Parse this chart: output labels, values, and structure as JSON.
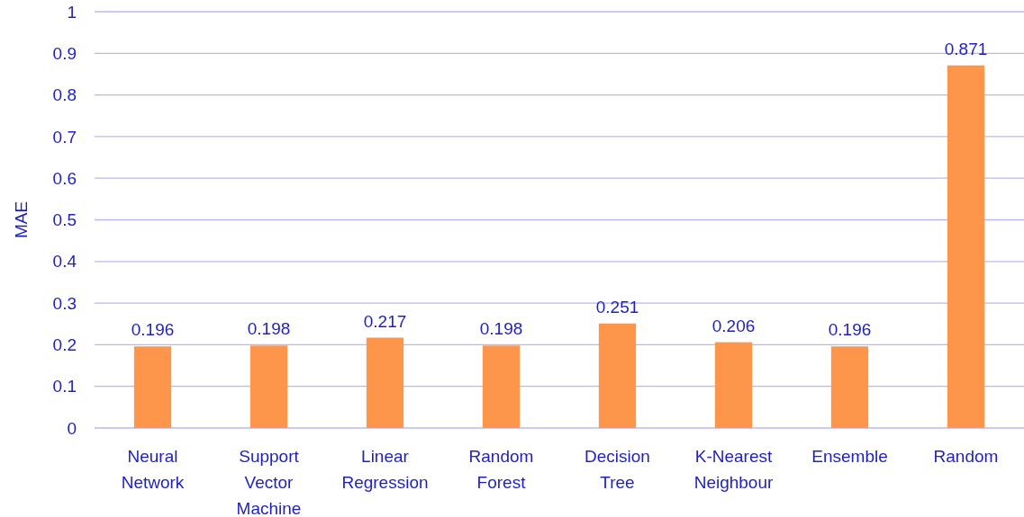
{
  "chart_data": {
    "type": "bar",
    "ylabel": "MAE",
    "categories": [
      "Neural Network",
      "Support Vector Machine",
      "Linear Regression",
      "Random Forest",
      "Decision Tree",
      "K-Nearest Neighbour",
      "Ensemble",
      "Random"
    ],
    "values": [
      0.196,
      0.198,
      0.217,
      0.198,
      0.251,
      0.206,
      0.196,
      0.871
    ],
    "color": "#fd964a",
    "ylim": [
      0,
      1
    ],
    "yticks": [
      0,
      0.1,
      0.2,
      0.3,
      0.4,
      0.5,
      0.6,
      0.7,
      0.8,
      0.9,
      1
    ],
    "grid": "y",
    "data_labels": true
  }
}
